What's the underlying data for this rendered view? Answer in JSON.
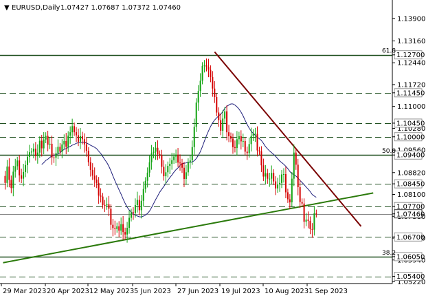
{
  "header": {
    "symbol": "EURUSD,Daily",
    "ohlc": "1.07427 1.07687 1.07372 1.07460"
  },
  "colors": {
    "bull": "#12a312",
    "bear": "#d40000",
    "ma": "#1e1e7a",
    "trendline_up": "#2b7a0b",
    "trendline_down": "#7a0000",
    "level_line": "#1f4f1f"
  },
  "chart_data": {
    "type": "candlestick",
    "ylim": [
      1.0522,
      1.1418
    ],
    "y_ticks": [
      "1.13900",
      "1.13160",
      "1.12440",
      "1.11720",
      "1.11000",
      "1.10280",
      "1.09560",
      "1.08820",
      "1.08100",
      "1.07380",
      "1.06660",
      "1.05940",
      "1.05220"
    ],
    "x_ticks": [
      "29 Mar 2023",
      "20 Apr 2023",
      "12 May 2023",
      "5 Jun 2023",
      "27 Jun 2023",
      "19 Jul 2023",
      "10 Aug 2023",
      "1 Sep 2023"
    ],
    "levels": [
      {
        "label": "1.12700",
        "value": 1.127,
        "fib": "61.8",
        "style": "solid"
      },
      {
        "label": "1.11450",
        "value": 1.1145,
        "style": "dash"
      },
      {
        "label": "1.10450",
        "value": 1.1045,
        "style": "dash"
      },
      {
        "label": "1.10000",
        "value": 1.1,
        "style": "dash"
      },
      {
        "label": "1.09400",
        "value": 1.094,
        "fib": "50.0",
        "style": "solid"
      },
      {
        "label": "1.08450",
        "value": 1.0845,
        "style": "dash"
      },
      {
        "label": "1.07700",
        "value": 1.077,
        "style": "dash"
      },
      {
        "label": "1.07460",
        "value": 1.0746,
        "style": "solid-current"
      },
      {
        "label": "1.06700",
        "value": 1.067,
        "style": "dash"
      },
      {
        "label": "1.06050",
        "value": 1.0605,
        "fib": "38.2",
        "style": "solid"
      },
      {
        "label": "1.05400",
        "value": 1.054,
        "style": "dash"
      }
    ],
    "trendlines": [
      {
        "name": "support",
        "from": [
          0,
          1.0585
        ],
        "to": [
          182,
          1.0815
        ]
      },
      {
        "name": "resistance",
        "from": [
          104,
          1.128
        ],
        "to": [
          176,
          1.0705
        ]
      }
    ],
    "closes": [
      1.0871,
      1.0848,
      1.0902,
      1.0858,
      1.0831,
      1.0885,
      1.0903,
      1.0922,
      1.0873,
      1.0862,
      1.0884,
      1.0907,
      1.0934,
      1.0949,
      1.0951,
      1.0961,
      1.0936,
      1.0948,
      1.0987,
      1.0962,
      1.0991,
      1.1003,
      1.0974,
      1.0977,
      1.0932,
      1.0931,
      1.0946,
      1.0967,
      1.0951,
      1.0975,
      1.0986,
      1.0967,
      1.1004,
      1.1015,
      1.1035,
      1.1015,
      1.1005,
      1.0984,
      1.1002,
      1.0992,
      1.0975,
      1.0954,
      1.0916,
      1.0891,
      1.0872,
      1.0859,
      1.0848,
      1.0806,
      1.0803,
      1.0775,
      1.0774,
      1.0778,
      1.0763,
      1.071,
      1.0699,
      1.0696,
      1.0705,
      1.0691,
      1.0712,
      1.0686,
      1.0678,
      1.07,
      1.0733,
      1.0751,
      1.0748,
      1.0775,
      1.0792,
      1.0758,
      1.0789,
      1.0828,
      1.0855,
      1.0882,
      1.0916,
      1.0946,
      1.0951,
      1.0964,
      1.0943,
      1.094,
      1.0901,
      1.087,
      1.0883,
      1.0904,
      1.0911,
      1.0923,
      1.0935,
      1.0941,
      1.0915,
      1.0913,
      1.0898,
      1.0861,
      1.0883,
      1.0917,
      1.0922,
      1.0966,
      1.1033,
      1.1113,
      1.1151,
      1.1185,
      1.1234,
      1.1236,
      1.123,
      1.1221,
      1.1197,
      1.1159,
      1.1131,
      1.108,
      1.1055,
      1.102,
      1.106,
      1.1084,
      1.1015,
      1.1002,
      1.0994,
      1.0966,
      1.0963,
      1.0992,
      1.1002,
      1.0985,
      1.0986,
      1.0951,
      1.0946,
      1.0976,
      1.1003,
      1.101,
      1.101,
      1.0955,
      1.0952,
      1.0906,
      1.0869,
      1.088,
      1.0862,
      1.0862,
      1.0881,
      1.0853,
      1.083,
      1.0843,
      1.0848,
      1.0876,
      1.0877,
      1.0817,
      1.0794,
      1.0784,
      1.0862,
      1.0948,
      1.0908,
      1.0834,
      1.0785,
      1.078,
      1.072,
      1.0727,
      1.0723,
      1.0696,
      1.0694,
      1.0748,
      1.0746
    ]
  },
  "tags": [
    "1.12700",
    "1.11450",
    "1.10450",
    "1.10000",
    "1.09400",
    "1.08450",
    "1.07700",
    "1.07460",
    "1.06700",
    "1.06050",
    "1.05400"
  ],
  "fib_labels": [
    "61.8",
    "50.0",
    "38.2"
  ]
}
